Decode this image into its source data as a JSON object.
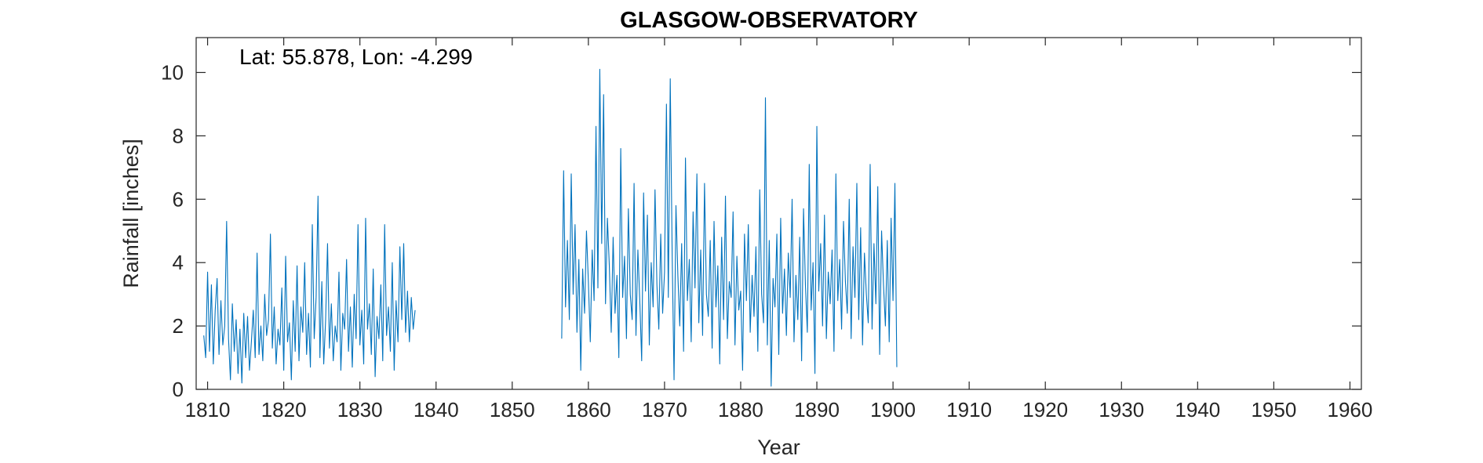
{
  "chart_data": {
    "type": "line",
    "title": "GLASGOW-OBSERVATORY",
    "annotation": "Lat: 55.878, Lon: -4.299",
    "xlabel": "Year",
    "ylabel": "Rainfall [inches]",
    "xlim": [
      1808.5,
      1961.5
    ],
    "ylim": [
      0,
      11.1
    ],
    "xticks": [
      1810,
      1820,
      1830,
      1840,
      1850,
      1860,
      1870,
      1880,
      1890,
      1900,
      1910,
      1920,
      1930,
      1940,
      1950,
      1960
    ],
    "yticks": [
      0,
      2,
      4,
      6,
      8,
      10
    ],
    "grid": false,
    "legend": "none",
    "colors": {
      "series": "#0072BD",
      "axis": "#262626"
    },
    "series": [
      {
        "values_note": "",
        "segments": [
          {
            "start": 1809.5,
            "step": 0.25,
            "values": [
              1.7,
              1.0,
              3.7,
              1.2,
              3.3,
              0.8,
              2.5,
              3.5,
              1.1,
              2.8,
              1.4,
              2.0,
              5.3,
              1.6,
              0.3,
              2.7,
              1.2,
              2.2,
              0.5,
              1.9,
              0.2,
              2.4,
              1.0,
              2.3,
              0.6,
              1.5,
              2.5,
              1.0,
              4.3,
              1.1,
              2.0,
              0.9,
              3.0,
              1.7,
              2.2,
              4.9,
              1.3,
              2.6,
              0.8,
              1.9,
              1.4,
              3.2,
              0.6,
              4.2,
              1.5,
              2.1,
              0.3,
              2.8,
              1.2,
              3.9,
              0.9,
              2.6,
              1.8,
              4.0,
              1.1,
              2.4,
              0.7,
              5.2,
              1.6,
              2.9,
              6.1,
              1.0,
              3.4,
              0.8,
              2.2,
              4.6,
              1.3,
              2.7,
              0.9,
              2.0,
              1.5,
              3.7,
              0.6,
              2.4,
              1.9,
              4.1,
              1.2,
              2.6,
              0.7,
              3.0,
              1.6,
              5.2,
              1.4,
              2.5,
              0.8,
              5.4,
              1.9,
              2.7,
              1.1,
              3.8,
              0.4,
              2.3,
              1.6,
              3.3,
              0.9,
              5.2,
              1.7,
              2.6,
              1.2,
              4.0,
              0.6,
              2.8,
              1.5,
              4.5,
              2.2,
              4.6,
              1.8,
              3.1,
              1.5,
              2.9,
              1.9,
              2.5
            ]
          },
          {
            "start": 1856.5,
            "step": 0.25,
            "values": [
              1.6,
              6.9,
              2.6,
              4.7,
              2.2,
              6.8,
              3.0,
              5.2,
              1.8,
              4.1,
              0.6,
              3.8,
              2.4,
              5.0,
              3.4,
              1.5,
              4.4,
              2.8,
              8.3,
              3.2,
              10.1,
              4.6,
              9.3,
              2.7,
              5.4,
              3.9,
              1.8,
              4.8,
              2.4,
              3.6,
              1.0,
              7.6,
              2.9,
              4.2,
              1.6,
              5.7,
              3.0,
              2.2,
              6.5,
              1.7,
              4.4,
              2.8,
              0.9,
              6.2,
              3.1,
              5.5,
              1.4,
              4.0,
              2.6,
              6.3,
              3.3,
              1.9,
              4.9,
              2.4,
              3.7,
              9.0,
              2.9,
              9.8,
              4.3,
              0.3,
              5.8,
              3.6,
              2.0,
              4.6,
              1.2,
              7.3,
              2.8,
              4.1,
              1.5,
              5.6,
              3.2,
              6.8,
              2.1,
              4.4,
              1.7,
              6.5,
              3.0,
              2.3,
              4.7,
              1.3,
              5.3,
              2.6,
              3.9,
              0.8,
              4.8,
              2.2,
              6.1,
              1.6,
              3.4,
              2.9,
              5.6,
              1.4,
              4.2,
              2.5,
              3.1,
              0.6,
              4.9,
              2.8,
              5.2,
              1.8,
              3.6,
              2.3,
              4.5,
              1.2,
              6.3,
              3.0,
              2.1,
              9.2,
              1.4,
              4.7,
              0.1,
              3.5,
              2.6,
              4.9,
              1.1,
              5.4,
              2.4,
              3.8,
              1.7,
              4.3,
              2.9,
              6.0,
              1.5,
              3.6,
              2.2,
              4.8,
              0.9,
              5.7,
              3.3,
              1.8,
              7.1,
              2.5,
              4.0,
              0.5,
              8.3,
              3.1,
              4.6,
              2.0,
              5.5,
              1.6,
              3.7,
              2.7,
              4.4,
              1.2,
              6.8,
              2.8,
              4.1,
              1.9,
              5.3,
              3.4,
              2.4,
              6.0,
              1.6,
              4.5,
              2.9,
              6.5,
              2.2,
              5.1,
              1.4,
              4.3,
              3.0,
              2.1,
              7.1,
              1.9,
              4.6,
              2.7,
              6.4,
              1.1,
              5.0,
              3.3,
              2.0,
              4.7,
              1.5,
              5.4,
              2.8,
              6.5,
              0.7
            ]
          }
        ]
      }
    ]
  }
}
